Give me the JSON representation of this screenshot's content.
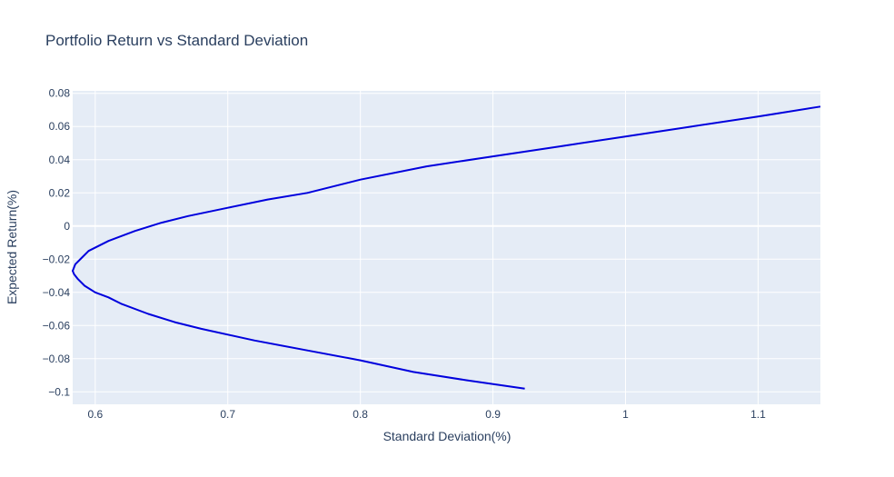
{
  "chart_data": {
    "type": "line",
    "title": "Portfolio Return vs Standard Deviation",
    "xlabel": "Standard Deviation(%)",
    "ylabel": "Expected Return(%)",
    "xlim": [
      0.583,
      1.147
    ],
    "ylim": [
      -0.1075,
      0.0815
    ],
    "xticks": [
      0.6,
      0.7,
      0.8,
      0.9,
      1,
      1.1
    ],
    "xtick_labels": [
      "0.6",
      "0.7",
      "0.8",
      "0.9",
      "1",
      "1.1"
    ],
    "yticks": [
      -0.1,
      -0.08,
      -0.06,
      -0.04,
      -0.02,
      0,
      0.02,
      0.04,
      0.06,
      0.08
    ],
    "ytick_labels": [
      "−0.1",
      "−0.08",
      "−0.06",
      "−0.04",
      "−0.02",
      "0",
      "0.02",
      "0.04",
      "0.06",
      "0.08"
    ],
    "grid": true,
    "colors": {
      "plot_bg": "#e5ecf6",
      "grid": "#ffffff",
      "line": "#0000dd",
      "text": "#2a3f5f"
    },
    "series": [
      {
        "points": [
          [
            0.924,
            -0.098
          ],
          [
            0.88,
            -0.093
          ],
          [
            0.84,
            -0.088
          ],
          [
            0.8,
            -0.081
          ],
          [
            0.76,
            -0.075
          ],
          [
            0.72,
            -0.069
          ],
          [
            0.68,
            -0.062
          ],
          [
            0.66,
            -0.058
          ],
          [
            0.64,
            -0.053
          ],
          [
            0.62,
            -0.047
          ],
          [
            0.61,
            -0.043
          ],
          [
            0.6,
            -0.04
          ],
          [
            0.592,
            -0.036
          ],
          [
            0.587,
            -0.032
          ],
          [
            0.584,
            -0.029
          ],
          [
            0.583,
            -0.027
          ],
          [
            0.585,
            -0.023
          ],
          [
            0.59,
            -0.019
          ],
          [
            0.595,
            -0.015
          ],
          [
            0.61,
            -0.009
          ],
          [
            0.63,
            -0.003
          ],
          [
            0.65,
            0.002
          ],
          [
            0.67,
            0.006
          ],
          [
            0.7,
            0.011
          ],
          [
            0.73,
            0.016
          ],
          [
            0.76,
            0.02
          ],
          [
            0.8,
            0.028
          ],
          [
            0.85,
            0.036
          ],
          [
            0.9,
            0.042
          ],
          [
            0.95,
            0.048
          ],
          [
            1.0,
            0.054
          ],
          [
            1.05,
            0.06
          ],
          [
            1.1,
            0.066
          ],
          [
            1.147,
            0.072
          ]
        ]
      }
    ]
  }
}
